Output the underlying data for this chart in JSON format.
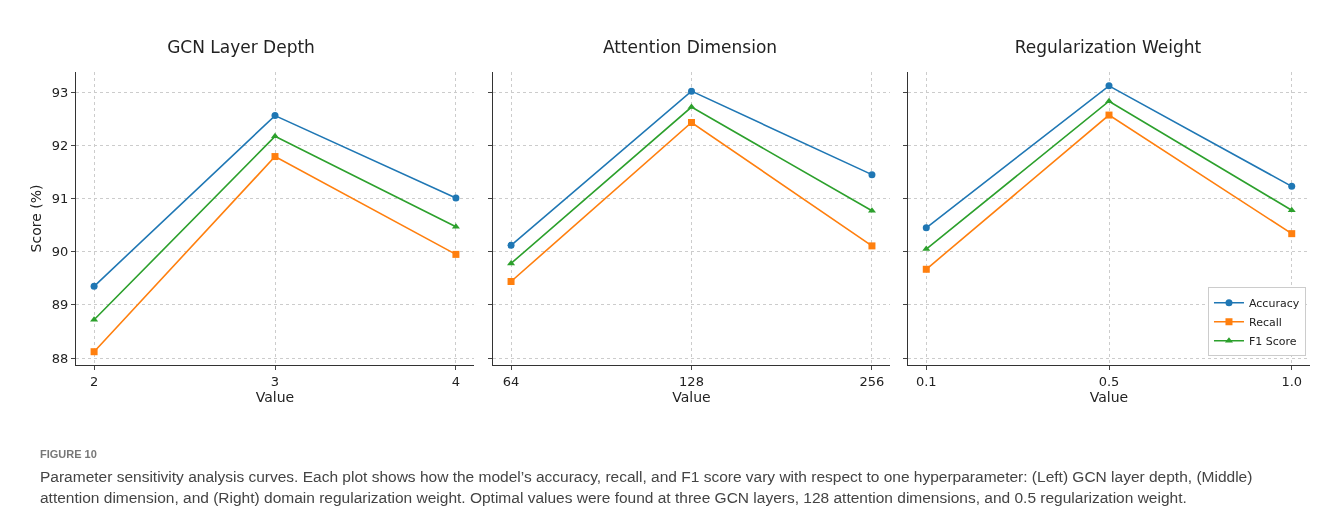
{
  "chart_data": [
    {
      "type": "line",
      "title": "GCN Layer Depth",
      "xlabel": "Value",
      "ylabel": "Score (%)",
      "categories": [
        "2",
        "3",
        "4"
      ],
      "ylim": [
        87.87,
        93.38
      ],
      "yticks": [
        88,
        89,
        90,
        91,
        92,
        93
      ],
      "grid": true,
      "legend": false,
      "line_style": "solid",
      "series": [
        {
          "color": "#1f77b4",
          "marker": "circle",
          "values": [
            89.35,
            92.56,
            91.01
          ]
        },
        {
          "color": "#ff7f0e",
          "marker": "square",
          "values": [
            88.12,
            91.79,
            89.95
          ]
        },
        {
          "color": "#2ca02c",
          "marker": "triangle",
          "values": [
            88.72,
            92.17,
            90.47
          ]
        }
      ],
      "annotations": [
        "FIGURE 10",
        "Parameter sensitivity analysis curves. Each plot shows how the model’s accuracy, recall, and F1 score vary with respect to one hyperparameter: (Left) GCN layer depth, (Middle) attention dimension, and (Right) domain regularization weight. Optimal values were found at three GCN layers, 128 attention dimensions, and 0.5 regularization weight."
      ]
    },
    {
      "type": "line",
      "title": "Attention Dimension",
      "xlabel": "Value",
      "categories": [
        "64",
        "128",
        "256"
      ],
      "ylim": [
        87.87,
        93.38
      ],
      "yticks": [
        88,
        89,
        90,
        91,
        92,
        93
      ],
      "tick_labels": "x",
      "grid": true,
      "legend": false,
      "line_style": "solid",
      "series": [
        {
          "color": "#1f77b4",
          "marker": "circle",
          "values": [
            90.12,
            93.02,
            91.45
          ]
        },
        {
          "color": "#ff7f0e",
          "marker": "square",
          "values": [
            89.44,
            92.43,
            90.11
          ]
        },
        {
          "color": "#2ca02c",
          "marker": "triangle",
          "values": [
            89.78,
            92.72,
            90.77
          ]
        }
      ]
    },
    {
      "type": "line",
      "title": "Regularization Weight",
      "xlabel": "Value",
      "categories": [
        "0.1",
        "0.5",
        "1.0"
      ],
      "ylim": [
        87.87,
        93.38
      ],
      "yticks": [
        88,
        89,
        90,
        91,
        92,
        93
      ],
      "tick_labels": "x",
      "grid": true,
      "legend": "bottom right",
      "line_style": "solid",
      "series": [
        {
          "name": "Accuracy",
          "color": "#1f77b4",
          "marker": "circle",
          "values": [
            90.45,
            93.12,
            91.23
          ]
        },
        {
          "name": "Recall",
          "color": "#ff7f0e",
          "marker": "square",
          "values": [
            89.67,
            92.57,
            90.34
          ]
        },
        {
          "name": "F1 Score",
          "color": "#2ca02c",
          "marker": "triangle",
          "values": [
            90.05,
            92.83,
            90.78
          ]
        }
      ]
    }
  ]
}
